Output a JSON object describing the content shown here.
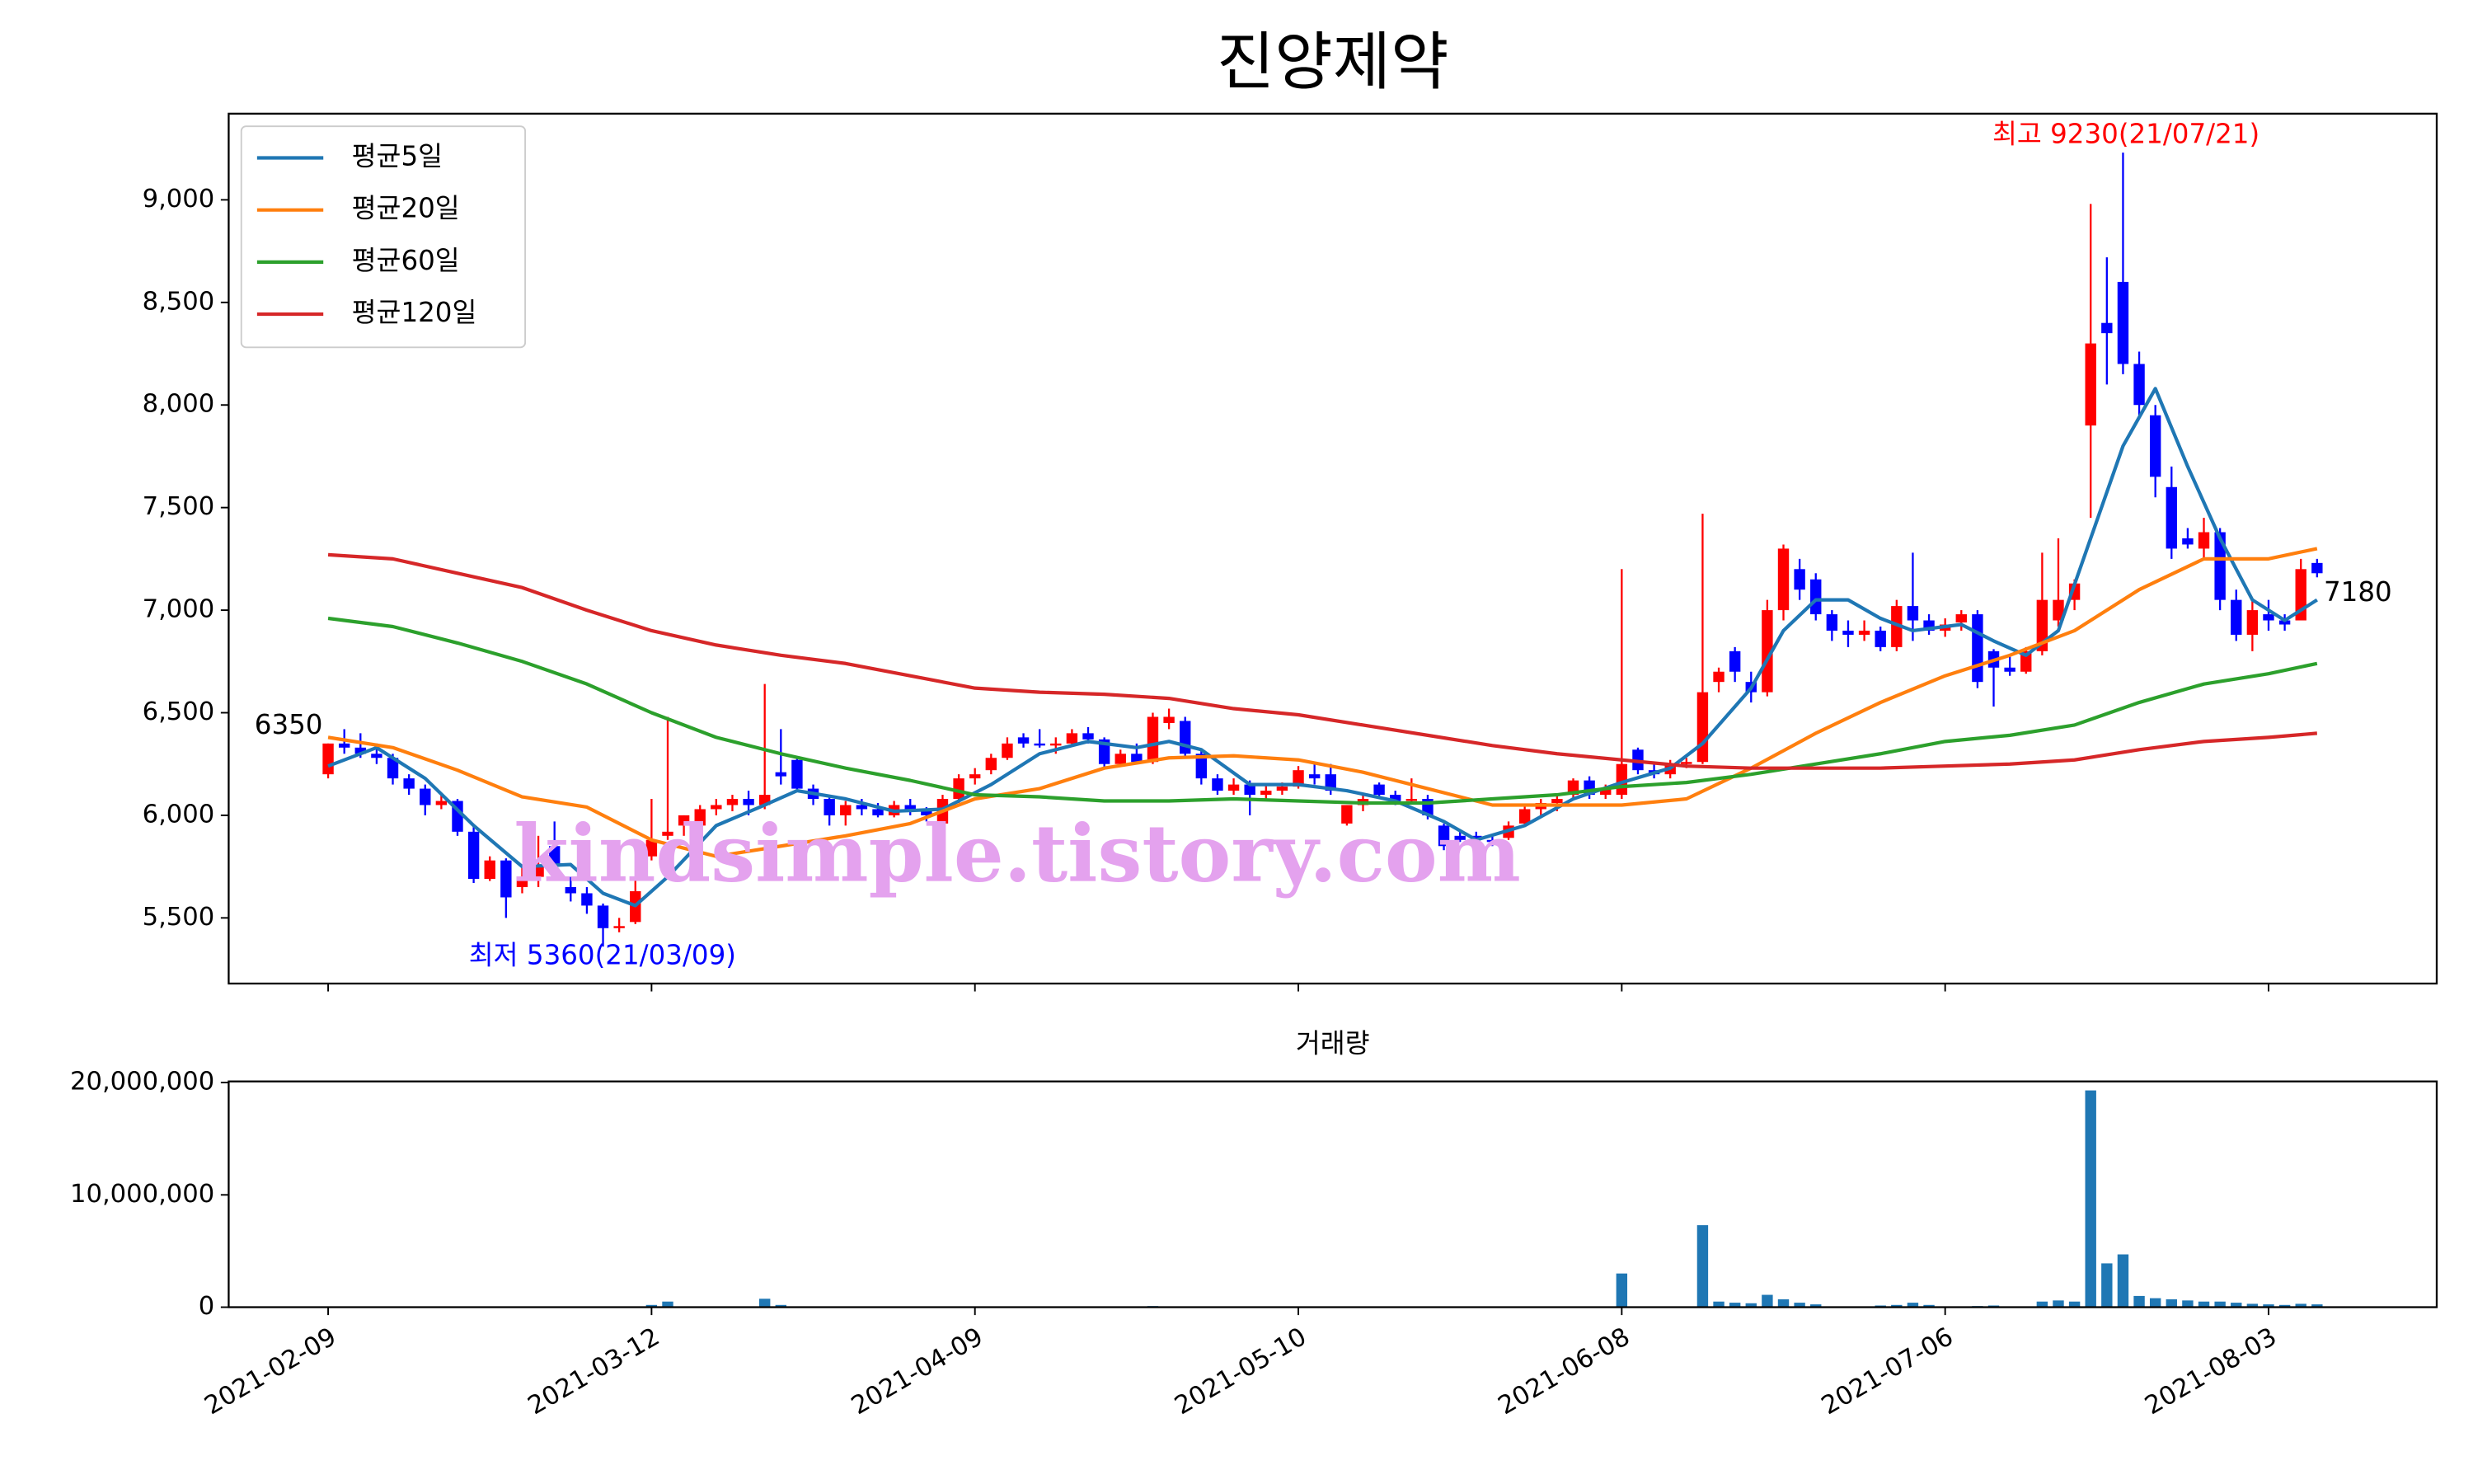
{
  "chart_data": [
    {
      "type": "candlestick",
      "title": "진양제약",
      "open": [
        6200,
        6350,
        6330,
        6300,
        6280,
        6180,
        6130,
        6050,
        6070,
        5920,
        5690,
        5780,
        5650,
        5700,
        5850,
        5650,
        5620,
        5560,
        5450,
        5480,
        5800,
        5900,
        5950,
        5950,
        6030,
        6050,
        6080,
        6050,
        6210,
        6270,
        6130,
        6080,
        6000,
        6050,
        6030,
        6000,
        6050,
        6020,
        5960,
        6080,
        6180,
        6220,
        6280,
        6380,
        6350,
        6340,
        6350,
        6400,
        6370,
        6250,
        6300,
        6260,
        6450,
        6460,
        6300,
        6180,
        6120,
        6150,
        6100,
        6120,
        6140,
        6200,
        6200,
        5960,
        6050,
        6150,
        6100,
        6070,
        6080,
        5950,
        5900,
        5900,
        5880,
        5890,
        5960,
        6030,
        6060,
        6100,
        6170,
        6100,
        6100,
        6320,
        6220,
        6200,
        6250,
        6260,
        6650,
        6800,
        6650,
        6600,
        7000,
        7200,
        7150,
        6980,
        6900,
        6880,
        6900,
        6820,
        7020,
        6950,
        6900,
        6940,
        6980,
        6800,
        6720,
        6700,
        6800,
        6950,
        7050,
        7900,
        8400,
        8600,
        8200,
        7950,
        7600,
        7350,
        7300,
        7380,
        7050,
        6880,
        6980,
        6950,
        6950,
        7230
      ],
      "high": [
        6350,
        6420,
        6400,
        6350,
        6300,
        6200,
        6150,
        6100,
        6080,
        5950,
        5800,
        5790,
        5750,
        5900,
        5970,
        5700,
        5650,
        5570,
        5500,
        5700,
        6080,
        6480,
        6000,
        6050,
        6080,
        6100,
        6120,
        6640,
        6420,
        6280,
        6150,
        6100,
        6070,
        6080,
        6060,
        6070,
        6080,
        6040,
        6100,
        6200,
        6230,
        6300,
        6380,
        6400,
        6420,
        6380,
        6420,
        6430,
        6380,
        6320,
        6350,
        6500,
        6520,
        6480,
        6320,
        6200,
        6180,
        6170,
        6150,
        6160,
        6240,
        6250,
        6250,
        6050,
        6100,
        6160,
        6120,
        6180,
        6100,
        5960,
        5920,
        5920,
        5900,
        5970,
        6050,
        6080,
        6100,
        6180,
        6190,
        6150,
        7200,
        6330,
        6260,
        6270,
        6280,
        7470,
        6720,
        6820,
        6700,
        7050,
        7320,
        7250,
        7180,
        7000,
        6950,
        6950,
        6920,
        7050,
        7280,
        6980,
        6960,
        7000,
        7000,
        6810,
        6780,
        6820,
        7280,
        7350,
        7150,
        8980,
        8720,
        9230,
        8260,
        8000,
        7700,
        7400,
        7450,
        7400,
        7100,
        7050,
        7050,
        6980,
        7250,
        7250
      ],
      "low": [
        6180,
        6300,
        6280,
        6250,
        6150,
        6100,
        6000,
        6030,
        5900,
        5670,
        5680,
        5500,
        5620,
        5650,
        5750,
        5580,
        5520,
        5360,
        5430,
        5470,
        5780,
        5880,
        5900,
        5920,
        6000,
        6020,
        6000,
        6030,
        6150,
        6120,
        6050,
        5950,
        5950,
        6000,
        5990,
        5990,
        6000,
        5970,
        5950,
        6060,
        6150,
        6200,
        6270,
        6330,
        6330,
        6300,
        6340,
        6350,
        6230,
        6240,
        6250,
        6250,
        6420,
        6280,
        6150,
        6100,
        6100,
        6000,
        6080,
        6100,
        6130,
        6150,
        6100,
        5950,
        6020,
        6080,
        6050,
        6060,
        5980,
        5830,
        5870,
        5850,
        5850,
        5880,
        5950,
        6000,
        6020,
        6080,
        6080,
        6080,
        6080,
        6200,
        6180,
        6180,
        6230,
        6250,
        6600,
        6650,
        6550,
        6580,
        6950,
        7050,
        6950,
        6850,
        6820,
        6850,
        6800,
        6800,
        6850,
        6880,
        6870,
        6900,
        6620,
        6530,
        6680,
        6690,
        6780,
        6920,
        7000,
        7450,
        8100,
        8150,
        7950,
        7550,
        7250,
        7300,
        7250,
        7000,
        6850,
        6800,
        6900,
        6900,
        6950,
        7160
      ],
      "close": [
        6350,
        6330,
        6300,
        6280,
        6180,
        6130,
        6050,
        6070,
        5920,
        5690,
        5780,
        5600,
        5700,
        5750,
        5750,
        5620,
        5560,
        5450,
        5460,
        5630,
        5880,
        5920,
        6000,
        6030,
        6050,
        6080,
        6050,
        6100,
        6190,
        6130,
        6080,
        6000,
        6050,
        6030,
        6000,
        6050,
        6020,
        6000,
        6080,
        6180,
        6200,
        6280,
        6350,
        6350,
        6340,
        6350,
        6400,
        6370,
        6250,
        6300,
        6260,
        6480,
        6480,
        6300,
        6180,
        6120,
        6150,
        6100,
        6120,
        6140,
        6220,
        6180,
        6120,
        6050,
        6080,
        6100,
        6070,
        6080,
        6000,
        5850,
        5880,
        5880,
        5870,
        5950,
        6030,
        6060,
        6080,
        6170,
        6100,
        6130,
        6250,
        6220,
        6200,
        6250,
        6260,
        6600,
        6700,
        6700,
        6600,
        7000,
        7300,
        7100,
        6980,
        6900,
        6880,
        6900,
        6820,
        7020,
        6950,
        6900,
        6930,
        6980,
        6650,
        6720,
        6700,
        6800,
        7050,
        7050,
        7130,
        8300,
        8350,
        8200,
        8000,
        7650,
        7300,
        7320,
        7380,
        7050,
        6880,
        7000,
        6950,
        6930,
        7200,
        7180
      ],
      "up_color": "#ff0000",
      "down_color": "#0000ff",
      "series": [
        {
          "name": "평균5일",
          "color": "#1f77b4",
          "x": [
            0,
            3,
            6,
            9,
            12,
            15,
            17,
            19,
            21,
            24,
            27,
            29,
            32,
            35,
            38,
            41,
            44,
            47,
            50,
            52,
            54,
            57,
            60,
            63,
            66,
            69,
            71,
            74,
            77,
            80,
            83,
            85,
            88,
            90,
            92,
            94,
            96,
            98,
            101,
            103,
            105,
            107,
            109,
            111,
            113,
            115,
            117,
            119,
            121,
            123
          ],
          "values": [
            6240,
            6330,
            6180,
            5950,
            5750,
            5760,
            5620,
            5560,
            5700,
            5950,
            6050,
            6120,
            6080,
            6020,
            6030,
            6150,
            6300,
            6360,
            6330,
            6360,
            6320,
            6150,
            6150,
            6120,
            6070,
            5970,
            5880,
            5950,
            6080,
            6160,
            6230,
            6350,
            6620,
            6900,
            7050,
            7050,
            6960,
            6900,
            6930,
            6850,
            6780,
            6900,
            7350,
            7800,
            8080,
            7700,
            7350,
            7050,
            6950,
            7050
          ]
        },
        {
          "name": "평균20일",
          "color": "#ff7f0e",
          "x": [
            0,
            4,
            8,
            12,
            16,
            20,
            24,
            28,
            32,
            36,
            40,
            44,
            48,
            52,
            56,
            60,
            64,
            68,
            72,
            76,
            80,
            84,
            88,
            92,
            96,
            100,
            104,
            108,
            112,
            116,
            120,
            123
          ],
          "values": [
            6380,
            6330,
            6220,
            6090,
            6040,
            5880,
            5800,
            5850,
            5900,
            5960,
            6080,
            6130,
            6230,
            6280,
            6290,
            6270,
            6210,
            6130,
            6050,
            6050,
            6050,
            6080,
            6230,
            6400,
            6550,
            6680,
            6780,
            6900,
            7100,
            7250,
            7250,
            7300
          ]
        },
        {
          "name": "평균60일",
          "color": "#2ca02c",
          "x": [
            0,
            4,
            8,
            12,
            16,
            20,
            24,
            28,
            32,
            36,
            40,
            44,
            48,
            52,
            56,
            60,
            64,
            68,
            72,
            76,
            80,
            84,
            88,
            92,
            96,
            100,
            104,
            108,
            112,
            116,
            120,
            123
          ],
          "values": [
            6960,
            6920,
            6840,
            6750,
            6640,
            6500,
            6380,
            6300,
            6230,
            6170,
            6100,
            6090,
            6070,
            6070,
            6080,
            6070,
            6060,
            6060,
            6080,
            6100,
            6140,
            6160,
            6200,
            6250,
            6300,
            6360,
            6390,
            6440,
            6550,
            6640,
            6690,
            6740
          ]
        },
        {
          "name": "평균120일",
          "color": "#d62728",
          "x": [
            0,
            4,
            8,
            12,
            16,
            20,
            24,
            28,
            32,
            36,
            40,
            44,
            48,
            52,
            56,
            60,
            64,
            68,
            72,
            76,
            80,
            84,
            88,
            92,
            96,
            100,
            104,
            108,
            112,
            116,
            120,
            123
          ],
          "values": [
            7270,
            7250,
            7180,
            7110,
            7000,
            6900,
            6830,
            6780,
            6740,
            6680,
            6620,
            6600,
            6590,
            6570,
            6520,
            6490,
            6440,
            6390,
            6340,
            6300,
            6270,
            6240,
            6230,
            6230,
            6230,
            6240,
            6250,
            6270,
            6320,
            6360,
            6380,
            6400
          ]
        }
      ],
      "annotations": [
        {
          "text": "최고 9230(21/07/21)",
          "color": "#ff0000"
        },
        {
          "text": "최저 5360(21/03/09)",
          "color": "#0000ff"
        },
        {
          "text": "6350",
          "color": "#000000"
        },
        {
          "text": "7180",
          "color": "#000000"
        },
        {
          "text": "kindsimple.tistory.com",
          "color": "#e4a2ee"
        }
      ],
      "legend": "upper left",
      "xlim": [
        -6.15,
        130.4
      ],
      "xticks": [
        0,
        20,
        40,
        60,
        80,
        100,
        120
      ],
      "ylim": [
        5180,
        9420
      ],
      "yticks": [
        {
          "value": 5500,
          "label": "5,500"
        },
        {
          "value": 6000,
          "label": "6,000"
        },
        {
          "value": 6500,
          "label": "6,500"
        },
        {
          "value": 7000,
          "label": "7,000"
        },
        {
          "value": 7500,
          "label": "7,500"
        },
        {
          "value": 8000,
          "label": "8,000"
        },
        {
          "value": 8500,
          "label": "8,500"
        },
        {
          "value": 9000,
          "label": "9,000"
        }
      ],
      "grid": false
    },
    {
      "type": "bar",
      "title": "거래량",
      "color": "#1f77b4",
      "values": [
        50000,
        50000,
        50000,
        50000,
        50000,
        50000,
        50000,
        50000,
        50000,
        50000,
        50000,
        50000,
        50000,
        50000,
        50000,
        50000,
        50000,
        50000,
        50000,
        50000,
        200000,
        500000,
        50000,
        50000,
        50000,
        50000,
        50000,
        750000,
        200000,
        50000,
        50000,
        50000,
        50000,
        50000,
        50000,
        50000,
        50000,
        50000,
        50000,
        50000,
        50000,
        50000,
        50000,
        50000,
        50000,
        50000,
        50000,
        50000,
        50000,
        50000,
        50000,
        100000,
        50000,
        50000,
        50000,
        50000,
        50000,
        50000,
        50000,
        50000,
        50000,
        50000,
        50000,
        50000,
        50000,
        50000,
        50000,
        50000,
        50000,
        50000,
        50000,
        50000,
        50000,
        50000,
        50000,
        50000,
        50000,
        50000,
        50000,
        50000,
        3000000,
        50000,
        50000,
        50000,
        50000,
        7300000,
        500000,
        400000,
        350000,
        1100000,
        700000,
        400000,
        250000,
        50000,
        50000,
        50000,
        150000,
        200000,
        400000,
        200000,
        50000,
        50000,
        100000,
        150000,
        50000,
        50000,
        500000,
        600000,
        500000,
        19300000,
        3900000,
        4700000,
        1000000,
        800000,
        700000,
        600000,
        500000,
        500000,
        400000,
        300000,
        250000,
        200000,
        300000,
        250000
      ],
      "xlim": [
        -6.15,
        130.4
      ],
      "xticks": [
        {
          "value": 0,
          "label": "2021-02-09"
        },
        {
          "value": 20,
          "label": "2021-03-12"
        },
        {
          "value": 40,
          "label": "2021-04-09"
        },
        {
          "value": 60,
          "label": "2021-05-10"
        },
        {
          "value": 80,
          "label": "2021-06-08"
        },
        {
          "value": 100,
          "label": "2021-07-06"
        },
        {
          "value": 120,
          "label": "2021-08-03"
        }
      ],
      "ylim": [
        0,
        20100000
      ],
      "yticks": [
        0,
        {
          "value": 10000000,
          "label": "10,000,000"
        },
        {
          "value": 20000000,
          "label": "20,000,000"
        }
      ],
      "grid": false
    }
  ]
}
